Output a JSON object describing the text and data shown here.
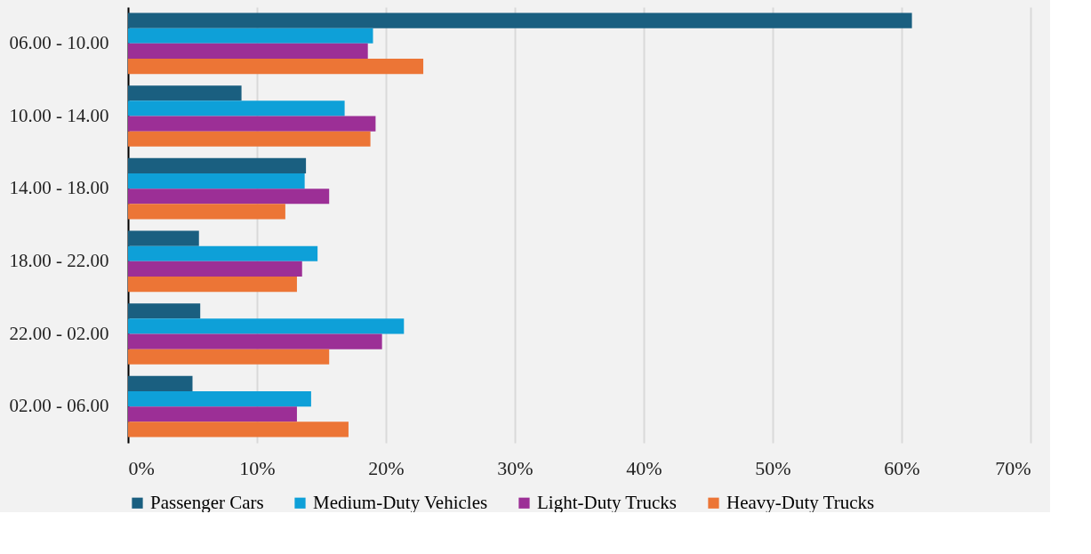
{
  "chart_data": {
    "type": "bar",
    "orientation": "horizontal",
    "categories": [
      "06.00 - 10.00",
      "10.00 - 14.00",
      "14.00 - 18.00",
      "18.00 - 22.00",
      "22.00 - 02.00",
      "02.00 - 06.00"
    ],
    "series": [
      {
        "name": "Passenger Cars",
        "color": "#1a5f80",
        "values": [
          60.8,
          8.8,
          13.8,
          5.5,
          5.6,
          5.0
        ]
      },
      {
        "name": "Medium-Duty Vehicles",
        "color": "#0ea0d8",
        "values": [
          19.0,
          16.8,
          13.7,
          14.7,
          21.4,
          14.2
        ]
      },
      {
        "name": "Light-Duty Trucks",
        "color": "#9c2f96",
        "values": [
          18.6,
          19.2,
          15.6,
          13.5,
          19.7,
          13.1
        ]
      },
      {
        "name": "Heavy-Duty Trucks",
        "color": "#ec7536",
        "values": [
          22.9,
          18.8,
          12.2,
          13.1,
          15.6,
          17.1
        ]
      }
    ],
    "xlim": [
      0,
      70
    ],
    "xticks": [
      {
        "value": 0,
        "label": "0%"
      },
      {
        "value": 10,
        "label": "10%"
      },
      {
        "value": 20,
        "label": "20%"
      },
      {
        "value": 30,
        "label": "30%"
      },
      {
        "value": 40,
        "label": "40%"
      },
      {
        "value": 50,
        "label": "50%"
      },
      {
        "value": 60,
        "label": "60%"
      },
      {
        "value": 70,
        "label": "70%"
      }
    ],
    "grid": "x",
    "legend": "bottom"
  }
}
